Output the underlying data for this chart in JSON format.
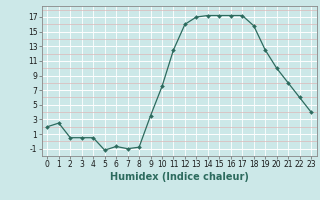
{
  "x": [
    0,
    1,
    2,
    3,
    4,
    5,
    6,
    7,
    8,
    9,
    10,
    11,
    12,
    13,
    14,
    15,
    16,
    17,
    18,
    19,
    20,
    21,
    22,
    23
  ],
  "y": [
    2,
    2.5,
    0.5,
    0.5,
    0.5,
    -1.2,
    -0.7,
    -1.0,
    -0.8,
    3.5,
    7.5,
    12.5,
    16.0,
    17.0,
    17.2,
    17.2,
    17.2,
    17.2,
    15.8,
    12.5,
    10.0,
    8.0,
    6.0,
    4.0
  ],
  "line_color": "#2d6b5e",
  "marker_color": "#2d6b5e",
  "bg_color": "#cce8e8",
  "grid_color_white": "#ffffff",
  "grid_color_pink": "#ddb8b8",
  "xlabel": "Humidex (Indice chaleur)",
  "yticks": [
    -1,
    1,
    3,
    5,
    7,
    9,
    11,
    13,
    15,
    17
  ],
  "xtick_labels": [
    "0",
    "1",
    "2",
    "3",
    "4",
    "5",
    "6",
    "7",
    "8",
    "9",
    "10",
    "11",
    "12",
    "13",
    "14",
    "15",
    "16",
    "17",
    "18",
    "19",
    "20",
    "21",
    "22",
    "23"
  ],
  "ylim": [
    -2.0,
    18.5
  ],
  "xlim": [
    -0.5,
    23.5
  ],
  "tick_fontsize": 5.5,
  "xlabel_fontsize": 7.0
}
